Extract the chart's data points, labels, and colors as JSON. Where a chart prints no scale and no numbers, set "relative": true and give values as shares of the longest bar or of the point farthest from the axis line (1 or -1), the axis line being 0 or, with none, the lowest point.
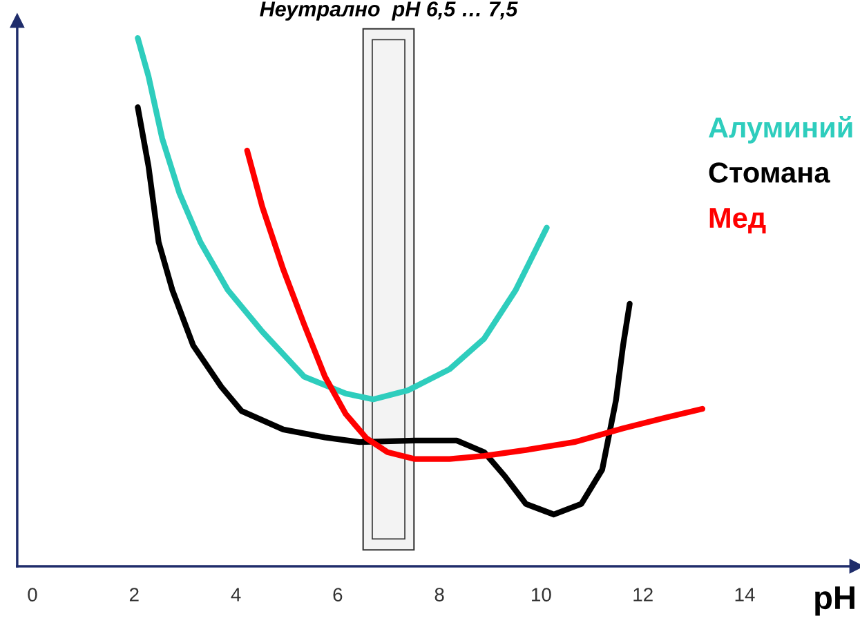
{
  "chart_data": {
    "type": "line",
    "relative": true,
    "xlabel": "pH",
    "xlim": [
      -0.3,
      16.2
    ],
    "xticks": [
      0,
      2,
      4,
      6,
      8,
      10,
      12,
      14
    ],
    "legend": "right",
    "series": [
      {
        "name": "Алуминий",
        "color": "#2ecdbd",
        "x": [
          2.07,
          2.28,
          2.55,
          2.89,
          3.3,
          3.84,
          4.52,
          5.34,
          6.16,
          6.7,
          7.38,
          8.2,
          8.88,
          9.5,
          10.11
        ],
        "values": [
          1.0,
          0.928,
          0.81,
          0.706,
          0.614,
          0.523,
          0.444,
          0.359,
          0.327,
          0.316,
          0.333,
          0.373,
          0.431,
          0.523,
          0.641
        ]
      },
      {
        "name": "Стомана",
        "color": "#000000",
        "x": [
          2.07,
          2.28,
          2.48,
          2.75,
          3.16,
          3.71,
          4.11,
          4.93,
          5.75,
          6.43,
          7.52,
          8.34,
          8.88,
          9.29,
          9.7,
          10.25,
          10.79,
          11.2,
          11.47,
          11.61,
          11.74
        ],
        "values": [
          0.869,
          0.758,
          0.614,
          0.523,
          0.418,
          0.34,
          0.294,
          0.259,
          0.244,
          0.235,
          0.238,
          0.238,
          0.216,
          0.17,
          0.118,
          0.098,
          0.118,
          0.183,
          0.314,
          0.418,
          0.497
        ]
      },
      {
        "name": "Мед",
        "color": "#ff0000",
        "x": [
          4.22,
          4.52,
          4.93,
          5.34,
          5.75,
          6.16,
          6.57,
          6.98,
          7.52,
          8.2,
          8.88,
          9.7,
          10.65,
          11.61,
          12.43,
          13.17
        ],
        "values": [
          0.787,
          0.68,
          0.562,
          0.458,
          0.359,
          0.288,
          0.242,
          0.216,
          0.203,
          0.203,
          0.209,
          0.22,
          0.235,
          0.261,
          0.281,
          0.298
        ]
      }
    ],
    "bands": [
      {
        "axis": "x",
        "from": 6.5,
        "to": 7.5,
        "label": "Неутрално  pH 6,5 … 7,5",
        "color": "#333333"
      }
    ]
  }
}
